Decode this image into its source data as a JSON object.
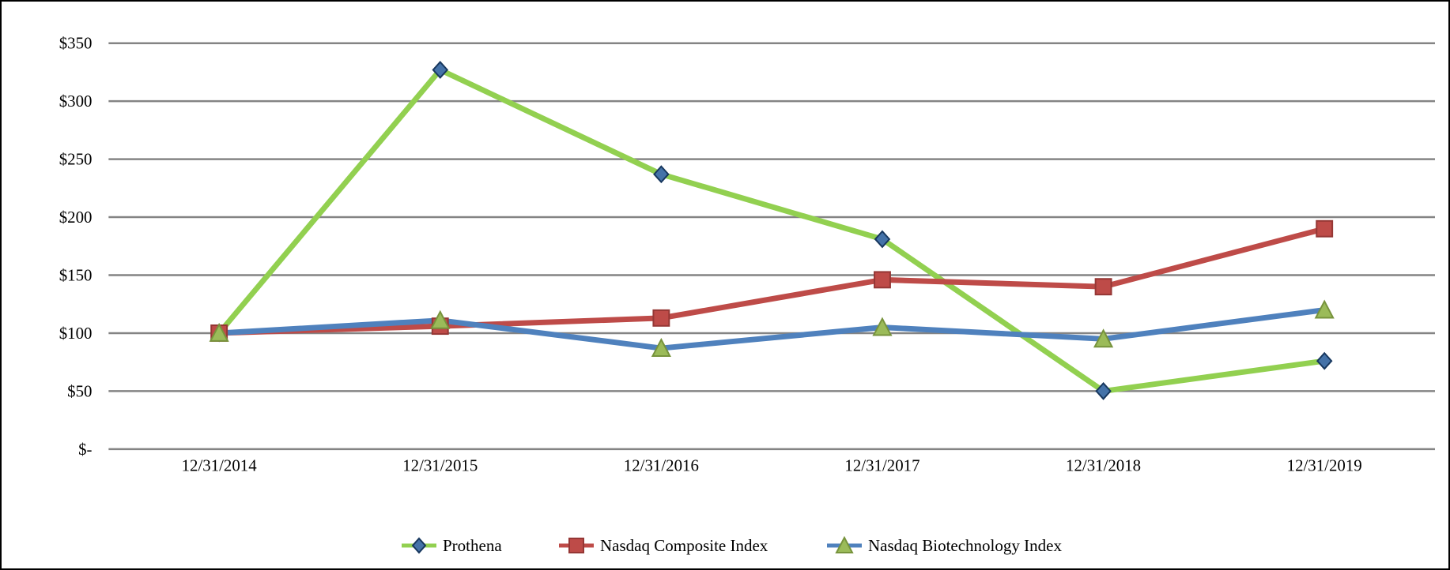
{
  "chart_data": {
    "type": "line",
    "title": "",
    "xlabel": "",
    "ylabel": "",
    "x": [
      "12/31/2014",
      "12/31/2015",
      "12/31/2016",
      "12/31/2017",
      "12/31/2018",
      "12/31/2019"
    ],
    "series": [
      {
        "name": "Prothena",
        "values": [
          100,
          327,
          237,
          181,
          50,
          76
        ],
        "line_color": "#92D050",
        "marker": "diamond",
        "marker_fill": "#4472A8",
        "marker_stroke": "#17375E"
      },
      {
        "name": "Nasdaq Composite Index",
        "values": [
          100,
          106,
          113,
          146,
          140,
          190
        ],
        "line_color": "#BE4B48",
        "marker": "square",
        "marker_fill": "#BE4B48",
        "marker_stroke": "#953735"
      },
      {
        "name": "Nasdaq Biotechnology Index",
        "values": [
          100,
          111,
          87,
          105,
          95,
          120
        ],
        "line_color": "#4F81BD",
        "marker": "triangle",
        "marker_fill": "#9BBB59",
        "marker_stroke": "#77933C"
      }
    ],
    "yticks": [
      {
        "label": "$350",
        "value": 350
      },
      {
        "label": "$300",
        "value": 300
      },
      {
        "label": "$250",
        "value": 250
      },
      {
        "label": "$200",
        "value": 200
      },
      {
        "label": "$150",
        "value": 150
      },
      {
        "label": "$100",
        "value": 100
      },
      {
        "label": "$50",
        "value": 50
      },
      {
        "label": "$-",
        "value": 0
      }
    ],
    "ylim": [
      0,
      350
    ],
    "grid": "horizontal",
    "gridline_color": "#848484",
    "axis_text_color": "#000000",
    "legend_position": "bottom"
  }
}
